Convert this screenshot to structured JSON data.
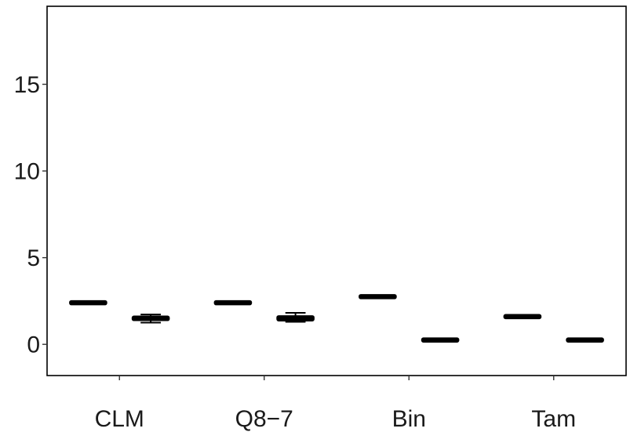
{
  "chart_data": {
    "type": "boxplot",
    "title": "",
    "xlabel": "",
    "ylabel": "",
    "ylim": [
      -1.8,
      19.5
    ],
    "yticks": [
      0,
      5,
      10,
      15
    ],
    "grid": false,
    "legend": "none",
    "categories": [
      "CLM",
      "Q8−7",
      "Bin",
      "Tam"
    ],
    "series": [
      {
        "values": [
          {
            "min": 2.33,
            "q1": 2.35,
            "median": 2.4,
            "q3": 2.45,
            "max": 2.47
          },
          {
            "min": 2.33,
            "q1": 2.35,
            "median": 2.4,
            "q3": 2.45,
            "max": 2.47
          },
          {
            "min": 2.68,
            "q1": 2.7,
            "median": 2.75,
            "q3": 2.8,
            "max": 2.82
          },
          {
            "min": 1.57,
            "q1": 1.58,
            "median": 1.6,
            "q3": 1.62,
            "max": 1.63
          }
        ]
      },
      {
        "values": [
          {
            "min": 1.25,
            "q1": 1.4,
            "median": 1.5,
            "q3": 1.6,
            "max": 1.72
          },
          {
            "min": 1.3,
            "q1": 1.38,
            "median": 1.5,
            "q3": 1.62,
            "max": 1.82
          },
          {
            "min": 0.18,
            "q1": 0.2,
            "median": 0.25,
            "q3": 0.3,
            "max": 0.32
          },
          {
            "min": 0.2,
            "q1": 0.22,
            "median": 0.25,
            "q3": 0.28,
            "max": 0.3
          }
        ]
      }
    ]
  }
}
